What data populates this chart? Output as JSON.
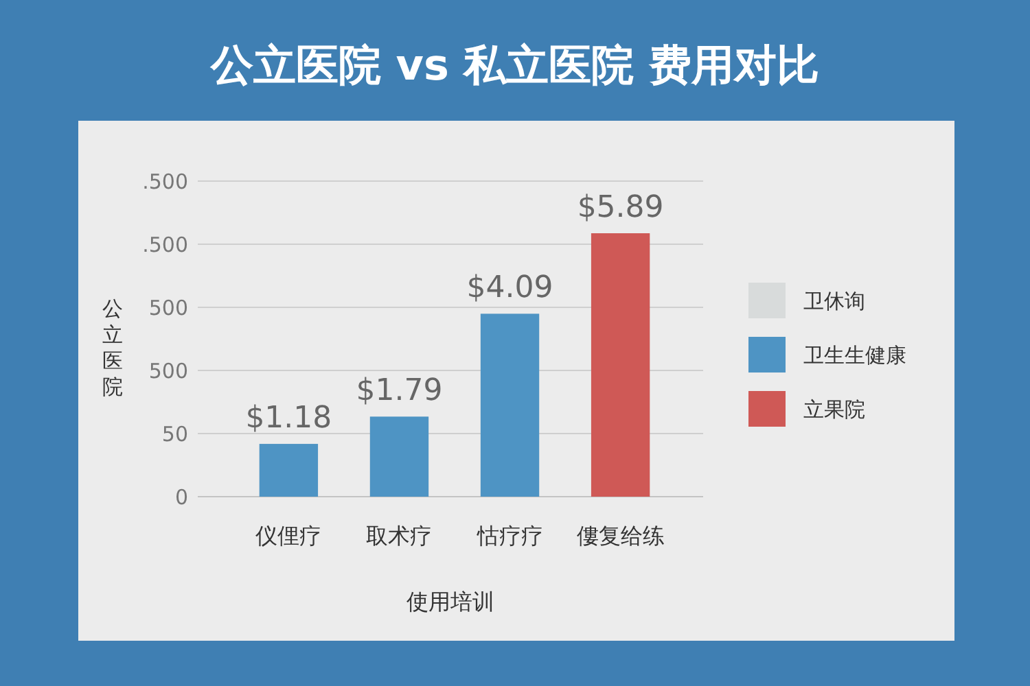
{
  "chart_data": {
    "type": "bar",
    "title": "公立医院 vs 私立医院 费用对比",
    "xlabel": "使用培训",
    "ylabel": "公立医院",
    "categories": [
      "仪俚疗",
      "取术疗",
      "怙疗疗",
      "僂复给练"
    ],
    "series": [
      {
        "name": "卫休询",
        "color": "#d8dbdb",
        "values": [
          null,
          null,
          null,
          null
        ]
      },
      {
        "name": "卫生生健康",
        "color": "#4e94c4",
        "values": [
          1.18,
          1.79,
          4.09,
          null
        ],
        "value_labels": [
          "$1.18",
          "$1.79",
          "$4.09",
          null
        ]
      },
      {
        "name": "立果院",
        "color": "#cf5956",
        "values": [
          null,
          null,
          null,
          5.89
        ],
        "value_labels": [
          null,
          null,
          null,
          "$5.89"
        ]
      }
    ],
    "annotations": [
      ".500",
      ".500",
      "500",
      "500",
      "50",
      "0"
    ],
    "grid": "y",
    "legend": "right"
  }
}
